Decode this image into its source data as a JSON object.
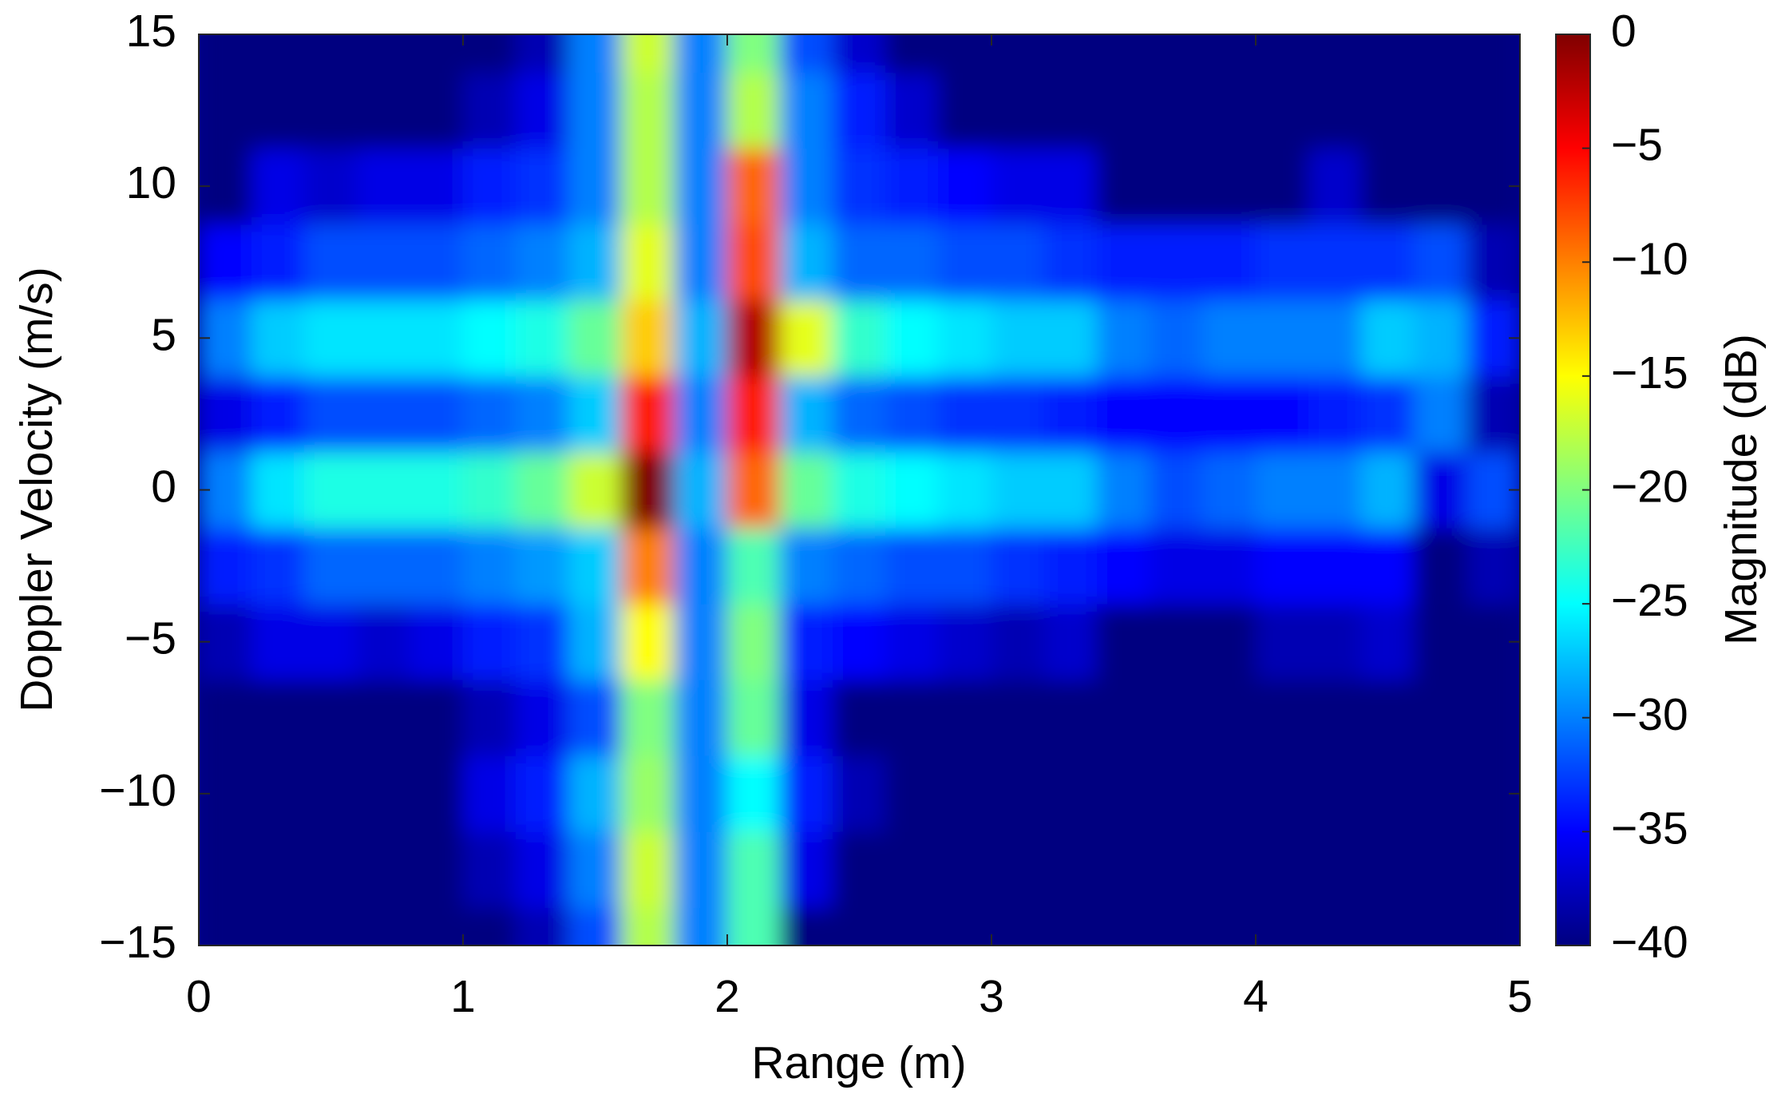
{
  "chart_data": {
    "type": "heatmap",
    "xlabel": "Range (m)",
    "ylabel": "Doppler Velocity (m/s)",
    "colorbar_label": "Magnitude (dB)",
    "colormap": "jet",
    "clim": [
      -40,
      0
    ],
    "x": [
      0.1,
      0.3,
      0.5,
      0.7,
      0.9,
      1.1,
      1.3,
      1.5,
      1.7,
      1.9,
      2.1,
      2.3,
      2.5,
      2.7,
      2.9,
      3.1,
      3.3,
      3.5,
      3.7,
      3.9,
      4.1,
      4.3,
      4.5,
      4.7,
      4.9
    ],
    "y": [
      -15,
      -12.5,
      -10,
      -7.5,
      -5,
      -2.5,
      0,
      2.5,
      5,
      7.5,
      10,
      12.5,
      15
    ],
    "z": [
      [
        -40,
        -40,
        -40,
        -40,
        -40,
        -40,
        -38,
        -32,
        -18,
        -30,
        -22,
        -40,
        -40,
        -40,
        -40,
        -40,
        -40,
        -40,
        -40,
        -40,
        -40,
        -40,
        -40,
        -40,
        -40
      ],
      [
        -40,
        -40,
        -40,
        -40,
        -40,
        -38,
        -36,
        -30,
        -17,
        -30,
        -22,
        -36,
        -40,
        -40,
        -40,
        -40,
        -40,
        -40,
        -40,
        -40,
        -40,
        -40,
        -40,
        -40,
        -40
      ],
      [
        -40,
        -40,
        -40,
        -40,
        -40,
        -36,
        -34,
        -28,
        -19,
        -30,
        -25,
        -34,
        -38,
        -40,
        -40,
        -40,
        -40,
        -40,
        -40,
        -40,
        -40,
        -40,
        -40,
        -40,
        -40
      ],
      [
        -40,
        -40,
        -40,
        -40,
        -40,
        -38,
        -36,
        -32,
        -20,
        -30,
        -21,
        -36,
        -40,
        -40,
        -40,
        -40,
        -40,
        -40,
        -40,
        -40,
        -40,
        -40,
        -40,
        -40,
        -40
      ],
      [
        -38,
        -36,
        -36,
        -37,
        -36,
        -34,
        -33,
        -28,
        -15,
        -30,
        -20,
        -34,
        -35,
        -36,
        -37,
        -38,
        -37,
        -40,
        -40,
        -40,
        -38,
        -38,
        -37,
        -40,
        -40
      ],
      [
        -34,
        -33,
        -31,
        -31,
        -31,
        -30,
        -29,
        -27,
        -10,
        -30,
        -22,
        -30,
        -31,
        -32,
        -32,
        -33,
        -34,
        -35,
        -36,
        -36,
        -35,
        -35,
        -35,
        -40,
        -38
      ],
      [
        -30,
        -26,
        -24,
        -24,
        -24,
        -23,
        -21,
        -17,
        0,
        -28,
        -9,
        -21,
        -24,
        -25,
        -26,
        -27,
        -27,
        -30,
        -32,
        -31,
        -30,
        -30,
        -28,
        -36,
        -32
      ],
      [
        -36,
        -34,
        -32,
        -32,
        -32,
        -31,
        -30,
        -27,
        -6,
        -30,
        -6,
        -28,
        -31,
        -32,
        -33,
        -33,
        -34,
        -35,
        -35,
        -35,
        -35,
        -34,
        -33,
        -30,
        -38
      ],
      [
        -30,
        -27,
        -26,
        -26,
        -26,
        -25,
        -24,
        -21,
        -13,
        -28,
        -2,
        -16,
        -23,
        -25,
        -26,
        -27,
        -27,
        -30,
        -31,
        -30,
        -30,
        -30,
        -27,
        -28,
        -34
      ],
      [
        -35,
        -34,
        -32,
        -32,
        -32,
        -31,
        -30,
        -28,
        -16,
        -30,
        -8,
        -28,
        -31,
        -31,
        -32,
        -32,
        -33,
        -34,
        -34,
        -34,
        -33,
        -33,
        -33,
        -32,
        -38
      ],
      [
        -40,
        -36,
        -37,
        -36,
        -36,
        -34,
        -33,
        -30,
        -18,
        -30,
        -9,
        -30,
        -33,
        -34,
        -35,
        -36,
        -36,
        -40,
        -40,
        -40,
        -40,
        -37,
        -40,
        -40,
        -40
      ],
      [
        -40,
        -40,
        -40,
        -40,
        -40,
        -38,
        -36,
        -30,
        -18,
        -30,
        -18,
        -30,
        -34,
        -37,
        -40,
        -40,
        -40,
        -40,
        -40,
        -40,
        -40,
        -40,
        -40,
        -40,
        -40
      ],
      [
        -40,
        -40,
        -40,
        -40,
        -40,
        -40,
        -38,
        -30,
        -17,
        -30,
        -20,
        -32,
        -37,
        -40,
        -40,
        -40,
        -40,
        -40,
        -40,
        -40,
        -40,
        -40,
        -40,
        -40,
        -40
      ]
    ],
    "xlim": [
      0,
      5
    ],
    "xticks": [
      0,
      1,
      2,
      3,
      4,
      5
    ],
    "ylim": [
      -15,
      15
    ],
    "yticks": [
      {
        "value": -15,
        "label": "−15"
      },
      {
        "value": -10,
        "label": "−10"
      },
      {
        "value": -5,
        "label": "−5"
      },
      0,
      5,
      10,
      15
    ],
    "cticks": [
      {
        "value": -40,
        "label": "−40"
      },
      {
        "value": -35,
        "label": "−35"
      },
      {
        "value": -30,
        "label": "−30"
      },
      {
        "value": -25,
        "label": "−25"
      },
      {
        "value": -20,
        "label": "−20"
      },
      {
        "value": -15,
        "label": "−15"
      },
      {
        "value": -10,
        "label": "−10"
      },
      {
        "value": -5,
        "label": "−5"
      },
      0
    ]
  }
}
